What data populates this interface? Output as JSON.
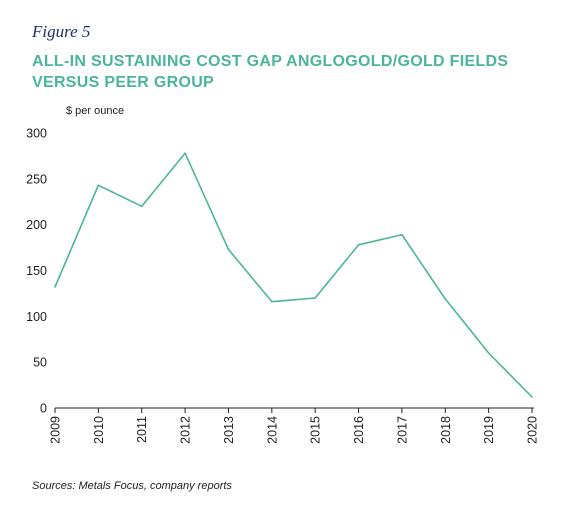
{
  "figure_label": "Figure 5",
  "title_lines": [
    "ALL-IN SUSTAINING COST GAP ANGLOGOLD/GOLD FIELDS",
    "VERSUS PEER GROUP"
  ],
  "source": "Sources: Metals Focus, company reports",
  "colors": {
    "line": "#4bb59b",
    "title": "#4bb59b",
    "figure_label": "#1f2d6b",
    "axis": "#1f1f1f"
  },
  "chart_data": {
    "type": "line",
    "title": "ALL-IN SUSTAINING COST GAP ANGLOGOLD/GOLD FIELDS VERSUS PEER GROUP",
    "ylabel": "$ per ounce",
    "xlabel": "",
    "categories": [
      "2009",
      "2010",
      "2011",
      "2012",
      "2013",
      "2014",
      "2015",
      "2016",
      "2017",
      "2018",
      "2019",
      "2020"
    ],
    "series": [
      {
        "values": [
          132,
          243,
          220,
          278,
          173,
          116,
          120,
          178,
          189,
          119,
          60,
          12
        ]
      }
    ],
    "ylim": [
      0,
      300
    ],
    "yticks": [
      0,
      50,
      100,
      150,
      200,
      250,
      300
    ],
    "grid": false,
    "x_tick_rotation": "vertical"
  }
}
